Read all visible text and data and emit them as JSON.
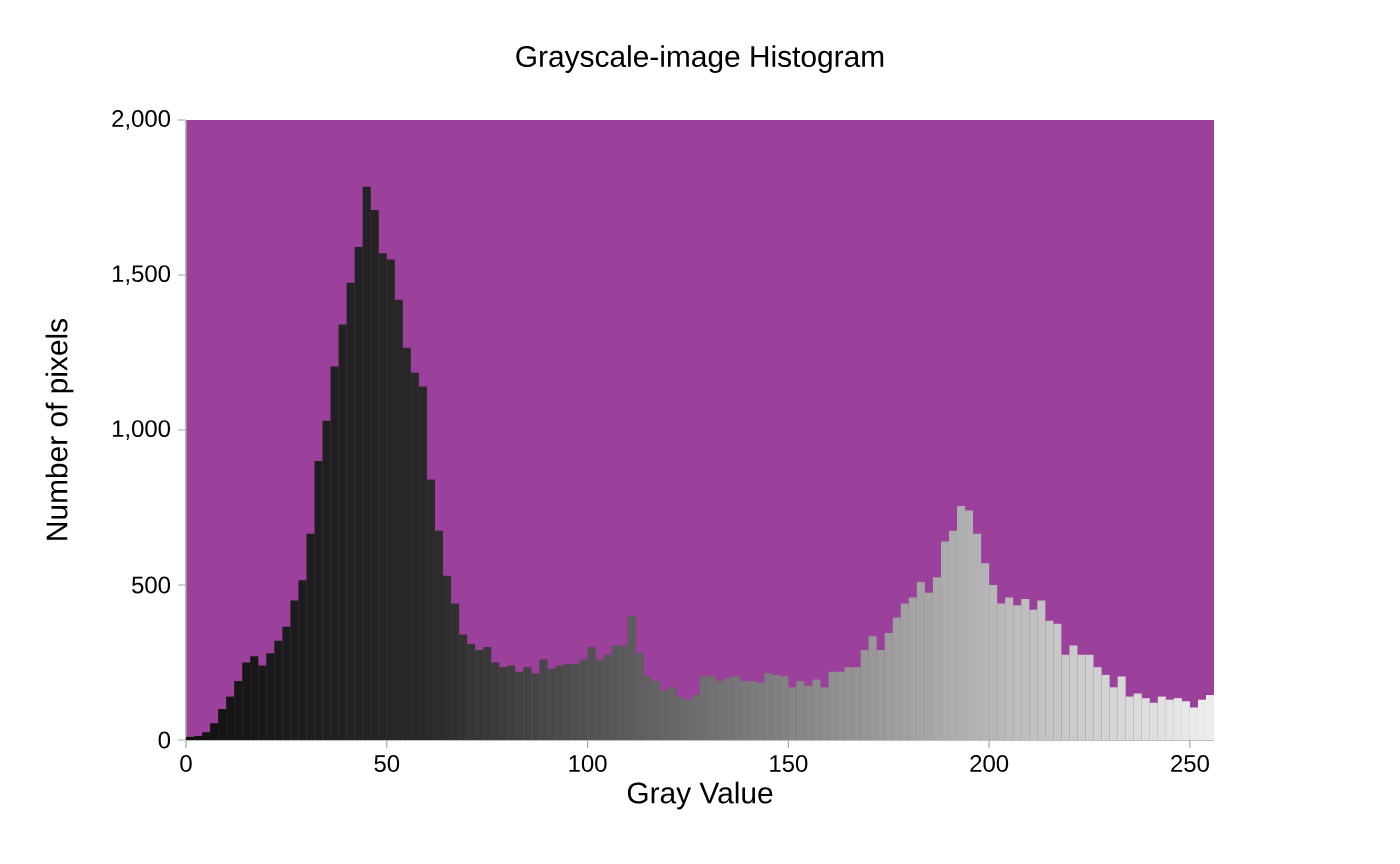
{
  "chart_data": {
    "type": "histogram",
    "title": "Grayscale-image Histogram",
    "xlabel": "Gray Value",
    "ylabel": "Number of pixels",
    "bins": [
      0,
      2,
      4,
      6,
      8,
      10,
      12,
      14,
      16,
      18,
      20,
      22,
      24,
      26,
      28,
      30,
      32,
      34,
      36,
      38,
      40,
      42,
      44,
      46,
      48,
      50,
      52,
      54,
      56,
      58,
      60,
      62,
      64,
      66,
      68,
      70,
      72,
      74,
      76,
      78,
      80,
      82,
      84,
      86,
      88,
      90,
      92,
      94,
      96,
      98,
      100,
      102,
      104,
      106,
      108,
      110,
      112,
      114,
      116,
      118,
      120,
      122,
      124,
      126,
      128,
      130,
      132,
      134,
      136,
      138,
      140,
      142,
      144,
      146,
      148,
      150,
      152,
      154,
      156,
      158,
      160,
      162,
      164,
      166,
      168,
      170,
      172,
      174,
      176,
      178,
      180,
      182,
      184,
      186,
      188,
      190,
      192,
      194,
      196,
      198,
      200,
      202,
      204,
      206,
      208,
      210,
      212,
      214,
      216,
      218,
      220,
      222,
      224,
      226,
      228,
      230,
      232,
      234,
      236,
      238,
      240,
      242,
      244,
      246,
      248,
      250,
      252,
      254,
      256
    ],
    "values": [
      10,
      13,
      25,
      54,
      100,
      140,
      190,
      250,
      270,
      240,
      280,
      320,
      365,
      450,
      515,
      665,
      900,
      1030,
      1205,
      1340,
      1475,
      1590,
      1785,
      1710,
      1570,
      1550,
      1420,
      1265,
      1185,
      1140,
      840,
      675,
      530,
      440,
      340,
      310,
      290,
      300,
      250,
      235,
      240,
      220,
      235,
      215,
      260,
      230,
      240,
      245,
      245,
      260,
      300,
      260,
      275,
      305,
      305,
      400,
      280,
      205,
      190,
      160,
      170,
      140,
      130,
      145,
      205,
      205,
      190,
      200,
      205,
      190,
      190,
      185,
      215,
      210,
      205,
      170,
      190,
      175,
      195,
      170,
      220,
      220,
      235,
      235,
      290,
      335,
      290,
      345,
      395,
      440,
      460,
      510,
      475,
      525,
      640,
      675,
      755,
      740,
      665,
      570,
      500,
      440,
      460,
      435,
      455,
      420,
      450,
      385,
      375,
      275,
      305,
      275,
      275,
      235,
      210,
      170,
      205,
      140,
      150,
      135,
      120,
      140,
      130,
      135,
      125,
      105,
      130,
      145
    ],
    "colors": [
      "#101010",
      "#111111",
      "#121212",
      "#131313",
      "#141414",
      "#151515",
      "#161616",
      "#161616",
      "#171717",
      "#181818",
      "#191919",
      "#1a1a1a",
      "#1b1b1b",
      "#1c1c1c",
      "#1c1c1c",
      "#1d1d1d",
      "#1e1e1e",
      "#1f1f1f",
      "#202020",
      "#212121",
      "#222222",
      "#222222",
      "#232323",
      "#242424",
      "#252525",
      "#262626",
      "#272727",
      "#282828",
      "#292929",
      "#292929",
      "#2b2b2b",
      "#2d2d2d",
      "#2f2f2f",
      "#313131",
      "#333333",
      "#353535",
      "#373737",
      "#393939",
      "#3b3b3b",
      "#3d3d3d",
      "#3f3f3f",
      "#414141",
      "#434343",
      "#454545",
      "#474747",
      "#494949",
      "#4b4b4b",
      "#4d4d4d",
      "#4f4f4f",
      "#515151",
      "#535353",
      "#555555",
      "#575757",
      "#595959",
      "#5b5b5b",
      "#5d5d5d",
      "#5f5f5f",
      "#616161",
      "#636363",
      "#656565",
      "#676767",
      "#696969",
      "#6b6b6b",
      "#6d6d6d",
      "#6f6f6f",
      "#717171",
      "#737373",
      "#757575",
      "#777777",
      "#797979",
      "#7b7b7b",
      "#7d7d7d",
      "#7f7f7f",
      "#818181",
      "#838383",
      "#858585",
      "#878787",
      "#898989",
      "#8b8b8b",
      "#8d8d8d",
      "#8f8f8f",
      "#919191",
      "#939393",
      "#959595",
      "#979797",
      "#999999",
      "#9b9b9b",
      "#9d9d9d",
      "#9f9f9f",
      "#a1a1a1",
      "#a3a3a3",
      "#a5a5a5",
      "#a7a7a7",
      "#a9a9a9",
      "#ababab",
      "#adadad",
      "#afafaf",
      "#b1b1b1",
      "#b3b3b3",
      "#b5b5b5",
      "#b7b7b7",
      "#b9b9b9",
      "#bbbbbb",
      "#bdbdbd",
      "#bfbfbf",
      "#c1c1c1",
      "#c3c3c3",
      "#c5c5c5",
      "#c7c7c7",
      "#c9c9c9",
      "#cbcbcb",
      "#cdcdcd",
      "#cfcfcf",
      "#d1d1d1",
      "#d3d3d3",
      "#d5d5d5",
      "#d7d7d7",
      "#d9d9d9",
      "#dbdbdb",
      "#dddddd",
      "#dfdfdf",
      "#e1e1e1",
      "#e3e3e3",
      "#e5e5e5",
      "#e7e7e7",
      "#e9e9e9",
      "#ebebeb",
      "#ededed"
    ],
    "xlim": [
      0,
      256
    ],
    "xticks": [
      0,
      50,
      100,
      150,
      200,
      250
    ],
    "ylim": [
      0,
      2000
    ],
    "yticks": [
      0,
      {
        "value": 500,
        "label": "500"
      },
      {
        "value": 1000,
        "label": "1,000"
      },
      {
        "value": 1500,
        "label": "1,500"
      },
      {
        "value": 2000,
        "label": "2,000"
      }
    ]
  }
}
